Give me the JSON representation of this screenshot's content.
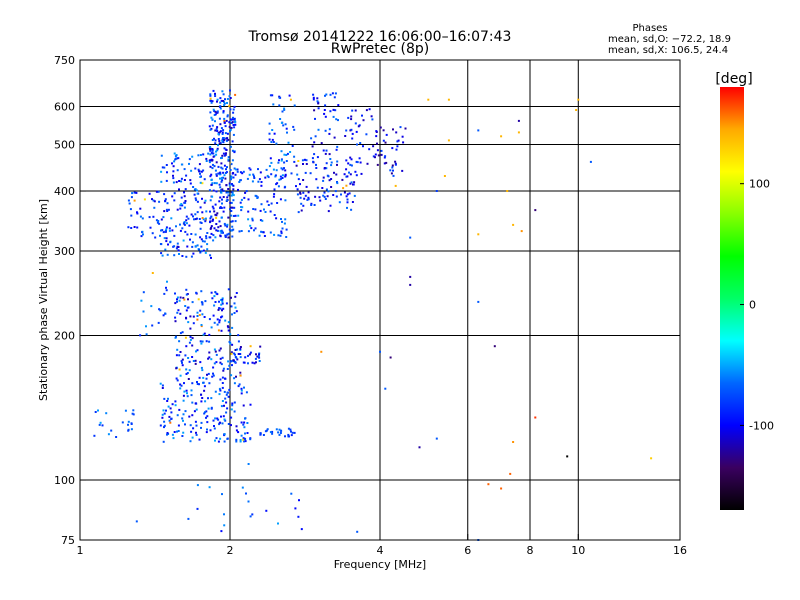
{
  "chart_data": {
    "type": "scatter",
    "title": "Tromsø 20141222 16:06:00–16:07:43",
    "subtitle": "RwPretec (8p)",
    "phases": {
      "heading": "Phases",
      "line_o": "mean, sd,O: −72.2, 18.9",
      "line_x": "mean, sd,X: 106.5, 24.4"
    },
    "xlabel": "Frequency [MHz]",
    "ylabel": "Stationary phase Virtual Height [km]",
    "x_scale": "log",
    "y_scale": "log",
    "xlim": [
      1,
      16
    ],
    "ylim": [
      75,
      750
    ],
    "x_ticks": [
      1,
      2,
      4,
      6,
      8,
      10,
      16
    ],
    "y_ticks": [
      75,
      100,
      200,
      300,
      400,
      500,
      600,
      750
    ],
    "x_gridlines": [
      2,
      4,
      6,
      8,
      10
    ],
    "y_gridlines": [
      100,
      200,
      300,
      400,
      500,
      600
    ],
    "grid": true,
    "colorbar": {
      "label": "[deg]",
      "min": -170,
      "max": 180,
      "ticks": [
        -100,
        0,
        100
      ],
      "colors": [
        "#000000",
        "#3a0060",
        "#0000ff",
        "#0066ff",
        "#00ffff",
        "#00ff66",
        "#00ff00",
        "#88ff00",
        "#ffff00",
        "#ffaa00",
        "#ff0000"
      ]
    },
    "point_clusters": [
      {
        "f": [
          1.82,
          2.05
        ],
        "h": [
          320,
          650
        ],
        "n": 320,
        "phase": [
          -120,
          -50
        ]
      },
      {
        "f": [
          1.45,
          1.85
        ],
        "h": [
          290,
          480
        ],
        "n": 200,
        "phase": [
          -110,
          -50
        ]
      },
      {
        "f": [
          1.25,
          1.5
        ],
        "h": [
          320,
          400
        ],
        "n": 50,
        "phase": [
          -110,
          -60
        ]
      },
      {
        "f": [
          2.05,
          2.6
        ],
        "h": [
          320,
          450
        ],
        "n": 110,
        "phase": [
          -110,
          -50
        ]
      },
      {
        "f": [
          2.4,
          2.7
        ],
        "h": [
          430,
          640
        ],
        "n": 55,
        "phase": [
          -110,
          -50
        ]
      },
      {
        "f": [
          2.7,
          3.6
        ],
        "h": [
          360,
          470
        ],
        "n": 110,
        "phase": [
          -120,
          -60
        ]
      },
      {
        "f": [
          2.9,
          3.3
        ],
        "h": [
          470,
          640
        ],
        "n": 45,
        "phase": [
          -120,
          -60
        ]
      },
      {
        "f": [
          3.4,
          3.9
        ],
        "h": [
          430,
          600
        ],
        "n": 35,
        "phase": [
          -120,
          -70
        ]
      },
      {
        "f": [
          3.9,
          4.5
        ],
        "h": [
          430,
          550
        ],
        "n": 40,
        "phase": [
          -130,
          -70
        ]
      },
      {
        "f": [
          1.55,
          2.1
        ],
        "h": [
          160,
          250
        ],
        "n": 200,
        "phase": [
          -120,
          -50
        ]
      },
      {
        "f": [
          1.45,
          2.2
        ],
        "h": [
          120,
          160
        ],
        "n": 190,
        "phase": [
          -110,
          -50
        ]
      },
      {
        "f": [
          2.0,
          2.3
        ],
        "h": [
          175,
          190
        ],
        "n": 35,
        "phase": [
          -120,
          -60
        ]
      },
      {
        "f": [
          2.3,
          2.7
        ],
        "h": [
          123,
          128
        ],
        "n": 28,
        "phase": [
          -90,
          -60
        ]
      },
      {
        "f": [
          1.05,
          1.3
        ],
        "h": [
          122,
          140
        ],
        "n": 22,
        "phase": [
          -90,
          -50
        ]
      },
      {
        "f": [
          1.3,
          1.5
        ],
        "h": [
          200,
          260
        ],
        "n": 18,
        "phase": [
          -100,
          -50
        ]
      },
      {
        "f": [
          1.7,
          2.8
        ],
        "h": [
          78,
          100
        ],
        "n": 18,
        "phase": [
          -100,
          -50
        ]
      }
    ],
    "points": [
      [
        2.65,
        620,
        140
      ],
      [
        2.2,
        190,
        140
      ],
      [
        2.18,
        108,
        -60
      ],
      [
        3.05,
        185,
        150
      ],
      [
        5.0,
        620,
        140
      ],
      [
        5.5,
        620,
        140
      ],
      [
        5.4,
        430,
        140
      ],
      [
        5.5,
        510,
        140
      ],
      [
        5.2,
        400,
        -80
      ],
      [
        6.3,
        535,
        -70
      ],
      [
        7.0,
        520,
        140
      ],
      [
        7.2,
        400,
        140
      ],
      [
        7.6,
        530,
        140
      ],
      [
        7.6,
        560,
        -120
      ],
      [
        7.4,
        340,
        140
      ],
      [
        8.2,
        365,
        -130
      ],
      [
        7.7,
        330,
        150
      ],
      [
        6.3,
        325,
        140
      ],
      [
        10.0,
        620,
        140
      ],
      [
        9.9,
        590,
        140
      ],
      [
        10.6,
        460,
        -70
      ],
      [
        4.6,
        320,
        -70
      ],
      [
        4.6,
        265,
        -120
      ],
      [
        4.6,
        255,
        -120
      ],
      [
        6.3,
        235,
        -70
      ],
      [
        6.8,
        190,
        -130
      ],
      [
        4.0,
        185,
        -70
      ],
      [
        4.2,
        180,
        -130
      ],
      [
        4.1,
        155,
        -70
      ],
      [
        4.8,
        117,
        -120
      ],
      [
        5.2,
        122,
        -70
      ],
      [
        7.4,
        120,
        150
      ],
      [
        7.3,
        103,
        160
      ],
      [
        7.0,
        96,
        160
      ],
      [
        6.6,
        98,
        160
      ],
      [
        8.2,
        135,
        170
      ],
      [
        9.5,
        112,
        -170
      ],
      [
        14.0,
        111,
        130
      ],
      [
        6.3,
        75,
        -70
      ],
      [
        3.6,
        78,
        -70
      ],
      [
        2.2,
        84,
        -70
      ],
      [
        1.65,
        83,
        -70
      ],
      [
        1.3,
        82,
        -70
      ],
      [
        1.4,
        270,
        140
      ],
      [
        4.5,
        540,
        -120
      ],
      [
        4.3,
        410,
        140
      ],
      [
        1.9,
        205,
        150
      ],
      [
        2.1,
        165,
        150
      ]
    ]
  }
}
